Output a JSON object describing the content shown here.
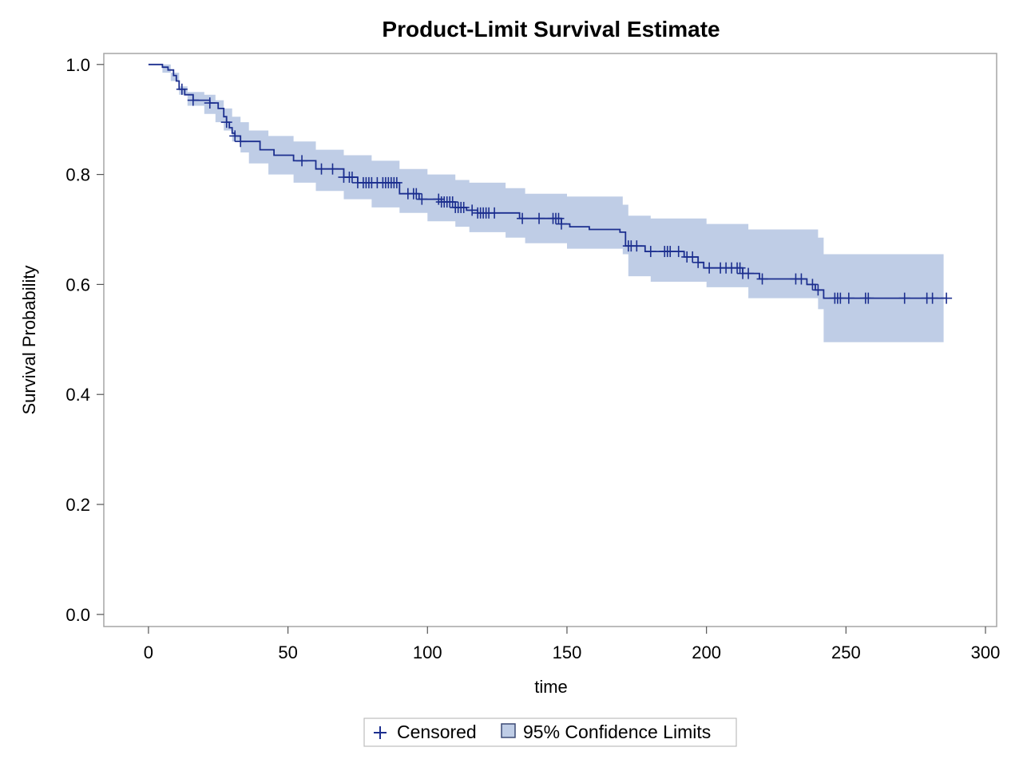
{
  "chart_data": {
    "type": "line",
    "title": "Product-Limit Survival Estimate",
    "xlabel": "time",
    "ylabel": "Survival Probability",
    "xlim": [
      -16,
      304
    ],
    "ylim": [
      -0.022,
      1.02
    ],
    "xticks": [
      0,
      50,
      100,
      150,
      200,
      250,
      300
    ],
    "yticks": [
      0.0,
      0.2,
      0.4,
      0.6,
      0.8,
      1.0
    ],
    "xtick_labels": [
      "0",
      "50",
      "100",
      "150",
      "200",
      "250",
      "300"
    ],
    "ytick_labels": [
      "0.0",
      "0.2",
      "0.4",
      "0.6",
      "0.8",
      "1.0"
    ],
    "grid": false,
    "colors": {
      "line": "#1c2f8f",
      "band": "#bfcde6",
      "band_border": "#3b4a75",
      "frame": "#a6a6a6"
    },
    "series": [
      {
        "name": "Survival",
        "step": true,
        "x": [
          0,
          5,
          7,
          9,
          10,
          11,
          13,
          16,
          22,
          25,
          27,
          28,
          29,
          30,
          31,
          33,
          40,
          45,
          52,
          60,
          70,
          75,
          90,
          97,
          105,
          110,
          114,
          118,
          133,
          148,
          151,
          158,
          169,
          171,
          178,
          192,
          197,
          199,
          213,
          219,
          236,
          239,
          242,
          286
        ],
        "y": [
          1.0,
          0.995,
          0.99,
          0.98,
          0.97,
          0.955,
          0.945,
          0.935,
          0.93,
          0.92,
          0.905,
          0.895,
          0.885,
          0.875,
          0.87,
          0.86,
          0.845,
          0.835,
          0.825,
          0.81,
          0.795,
          0.785,
          0.765,
          0.755,
          0.75,
          0.74,
          0.735,
          0.73,
          0.72,
          0.71,
          0.705,
          0.7,
          0.695,
          0.67,
          0.66,
          0.65,
          0.64,
          0.63,
          0.62,
          0.61,
          0.6,
          0.59,
          0.575,
          0.575
        ]
      }
    ],
    "confidence_band": {
      "name": "95% Confidence Limits",
      "x": [
        0,
        5,
        8,
        11,
        14,
        20,
        24,
        27,
        30,
        33,
        36,
        43,
        52,
        60,
        70,
        80,
        90,
        100,
        110,
        115,
        128,
        135,
        150,
        170,
        172,
        180,
        200,
        215,
        240,
        242,
        285
      ],
      "upper": [
        1.0,
        1.0,
        0.985,
        0.96,
        0.95,
        0.945,
        0.935,
        0.92,
        0.905,
        0.895,
        0.88,
        0.87,
        0.86,
        0.845,
        0.835,
        0.825,
        0.81,
        0.8,
        0.79,
        0.785,
        0.775,
        0.765,
        0.76,
        0.745,
        0.725,
        0.72,
        0.71,
        0.7,
        0.685,
        0.655,
        0.655
      ],
      "lower": [
        1.0,
        0.985,
        0.97,
        0.945,
        0.925,
        0.91,
        0.895,
        0.88,
        0.86,
        0.84,
        0.82,
        0.8,
        0.785,
        0.77,
        0.755,
        0.74,
        0.73,
        0.715,
        0.705,
        0.695,
        0.685,
        0.675,
        0.665,
        0.655,
        0.615,
        0.605,
        0.595,
        0.575,
        0.555,
        0.495,
        0.495
      ]
    },
    "censored": [
      12,
      16,
      22,
      28,
      31,
      33,
      55,
      62,
      66,
      70,
      72,
      73,
      75,
      77,
      78,
      79,
      80,
      82,
      84,
      85,
      86,
      87,
      88,
      89,
      93,
      95,
      96,
      98,
      104,
      105,
      106,
      107,
      108,
      109,
      110,
      111,
      112,
      113,
      116,
      118,
      119,
      120,
      121,
      122,
      124,
      134,
      140,
      145,
      146,
      147,
      148,
      172,
      173,
      175,
      180,
      185,
      186,
      187,
      190,
      193,
      195,
      197,
      201,
      205,
      207,
      209,
      211,
      212,
      213,
      215,
      220,
      232,
      234,
      238,
      240,
      246,
      247,
      248,
      251,
      257,
      258,
      271,
      279,
      281,
      286
    ],
    "legend": {
      "placement": "bottom-center",
      "items": [
        {
          "name": "Censored",
          "symbol": "plus"
        },
        {
          "name": "95% Confidence Limits",
          "symbol": "filled-square"
        }
      ]
    }
  }
}
